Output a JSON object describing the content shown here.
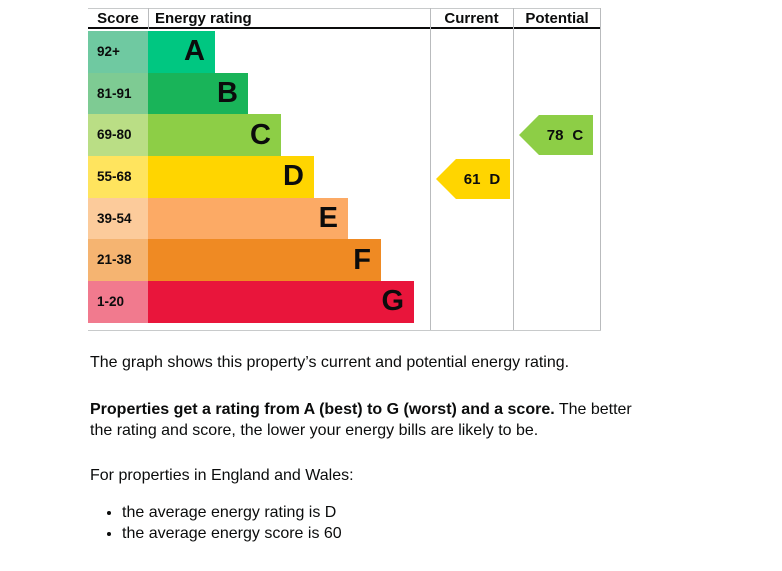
{
  "chart_data": {
    "type": "bar",
    "title": "Energy rating",
    "columns": {
      "score": "Score",
      "rating": "Energy rating",
      "current": "Current",
      "potential": "Potential"
    },
    "categories": [
      "A",
      "B",
      "C",
      "D",
      "E",
      "F",
      "G"
    ],
    "score_ranges": [
      "92+",
      "81-91",
      "69-80",
      "55-68",
      "39-54",
      "21-38",
      "1-20"
    ],
    "bands": [
      {
        "label": "A",
        "range": "92+",
        "color": "#00c781",
        "tint": "#6fc9a1"
      },
      {
        "label": "B",
        "range": "81-91",
        "color": "#19b459",
        "tint": "#7ecb93"
      },
      {
        "label": "C",
        "range": "69-80",
        "color": "#8dce46",
        "tint": "#bade85"
      },
      {
        "label": "D",
        "range": "55-68",
        "color": "#ffd500",
        "tint": "#ffe45e"
      },
      {
        "label": "E",
        "range": "39-54",
        "color": "#fcaa65",
        "tint": "#fccb9b"
      },
      {
        "label": "F",
        "range": "21-38",
        "color": "#ef8a23",
        "tint": "#f5b471"
      },
      {
        "label": "G",
        "range": "1-20",
        "color": "#e9153b",
        "tint": "#f17a8e"
      }
    ],
    "current": {
      "score": "61",
      "band": "D",
      "color": "#ffd500",
      "band_index": 3
    },
    "potential": {
      "score": "78",
      "band": "C",
      "color": "#8dce46",
      "band_index": 2
    }
  },
  "colors": {
    "grid_line": "#b9bbbd",
    "header_underline": "#0b0c0c",
    "text": "#0b0c0c"
  },
  "text": {
    "para1": "The graph shows this property’s current and potential energy rating.",
    "para2_bold": "Properties get a rating from A (best) to G (worst) and a score.",
    "para2_rest_line1": "The better",
    "para2_line2": "the rating and score, the lower your energy bills are likely to be.",
    "para3": "For properties in England and Wales:",
    "bullets": [
      "the average energy rating is D",
      "the average energy score is 60"
    ]
  }
}
